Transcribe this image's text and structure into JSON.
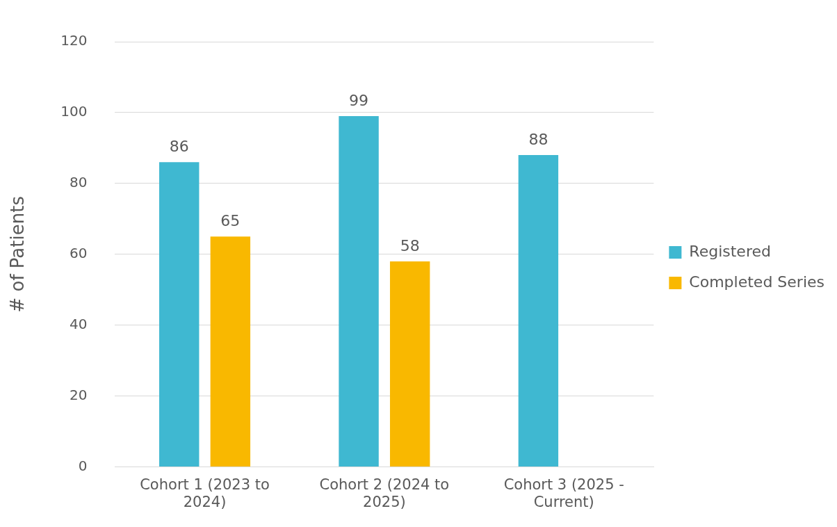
{
  "chart_data": {
    "type": "bar",
    "ylabel": "# of Patients",
    "categories": [
      "Cohort 1 (2023 to 2024)",
      "Cohort 2 (2024 to 2025)",
      "Cohort 3 (2025 - Current)"
    ],
    "series": [
      {
        "name": "Registered",
        "color": "#3fb8d1",
        "values": [
          86,
          99,
          88
        ]
      },
      {
        "name": "Completed Series",
        "color": "#f9b800",
        "values": [
          65,
          58,
          null
        ]
      }
    ],
    "ylim": [
      0,
      120
    ],
    "yticks": [
      0,
      20,
      40,
      60,
      80,
      100,
      120
    ],
    "grid": "y",
    "legend": "right",
    "data_labels": true
  }
}
